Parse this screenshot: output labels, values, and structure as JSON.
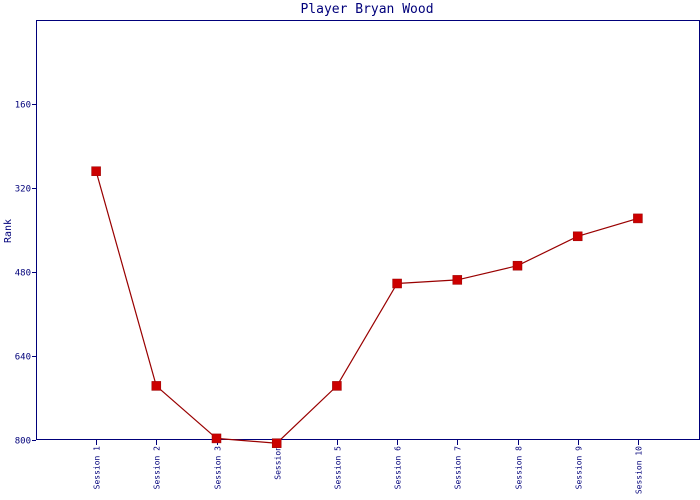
{
  "chart_data": {
    "type": "line",
    "title": "Player Bryan Wood",
    "xlabel": "",
    "ylabel": "Rank",
    "y_inverted": true,
    "ylim": [
      0,
      800
    ],
    "yticks": [
      160,
      320,
      480,
      640,
      800
    ],
    "grid": false,
    "categories": [
      "Session 1",
      "Session 2",
      "Session 3",
      "Session",
      "Session 5",
      "Session 6",
      "Session 7",
      "Session 8",
      "Session 9",
      "Session 10"
    ],
    "series": [
      {
        "name": "",
        "values": [
          288,
          697,
          797,
          806,
          697,
          502,
          495,
          468,
          412,
          378
        ]
      }
    ]
  },
  "colors": {
    "axis": "#00007a",
    "line": "#990000",
    "marker": "#cc0000",
    "background": "#ffffff"
  }
}
